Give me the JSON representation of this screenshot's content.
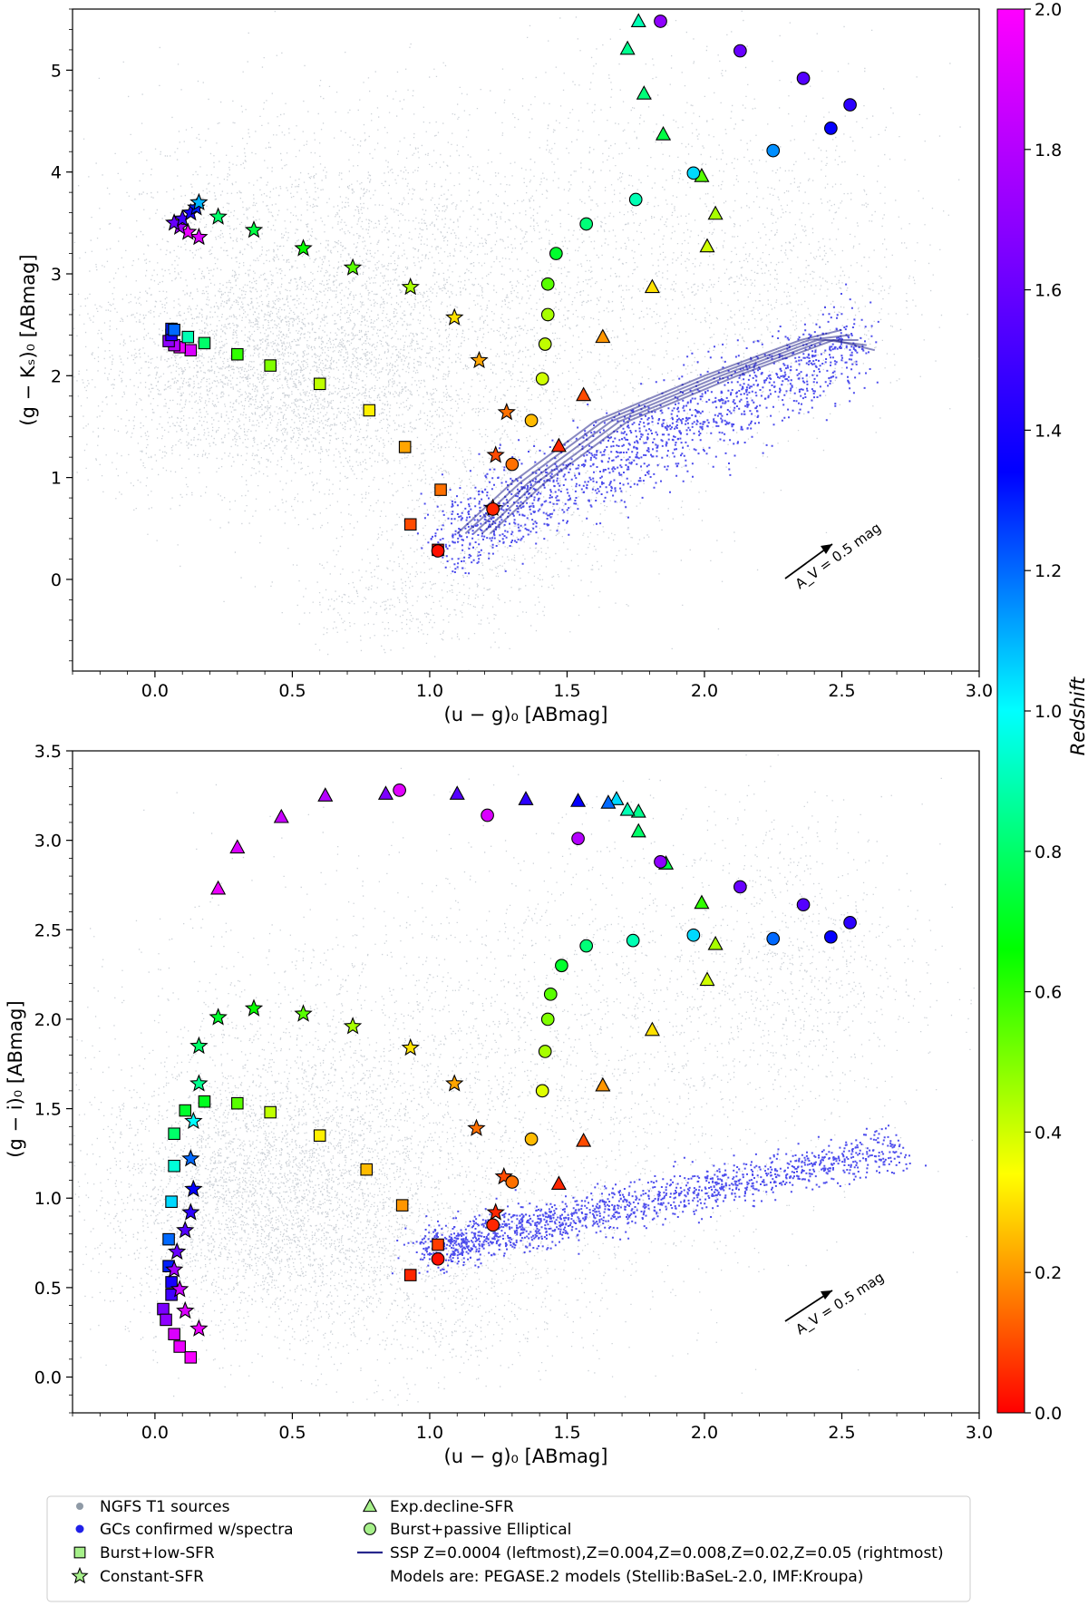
{
  "chart_data": [
    {
      "type": "scatter",
      "panel": "top",
      "xlabel": "(u − g)₀ [ABmag]",
      "ylabel": "(g − Kₛ)₀ [ABmag]",
      "xlim": [
        -0.3,
        3.0
      ],
      "ylim": [
        -0.9,
        5.6
      ],
      "xticks": [
        "0.0",
        "0.5",
        "1.0",
        "1.5",
        "2.0",
        "2.5",
        "3.0"
      ],
      "xtick_values": [
        0,
        0.5,
        1.0,
        1.5,
        2.0,
        2.5,
        3.0
      ],
      "yticks": [
        "0",
        "1",
        "2",
        "3",
        "4",
        "5"
      ],
      "ytick_values": [
        0,
        1,
        2,
        3,
        4,
        5
      ],
      "reddening_label": "A_V = 0.5 mag",
      "series": [
        {
          "name": "Burst+low-SFR",
          "marker": "square",
          "points": [
            [
              1.03,
              0.29
            ],
            [
              0.93,
              0.54
            ],
            [
              1.04,
              0.88
            ],
            [
              0.91,
              1.3
            ],
            [
              0.78,
              1.66
            ],
            [
              0.6,
              1.92
            ],
            [
              0.42,
              2.1
            ],
            [
              0.3,
              2.21
            ],
            [
              0.18,
              2.32
            ],
            [
              0.13,
              2.25
            ],
            [
              0.09,
              2.28
            ],
            [
              0.07,
              2.3
            ],
            [
              0.05,
              2.34
            ],
            [
              0.06,
              2.4
            ],
            [
              0.06,
              2.46
            ],
            [
              0.07,
              2.45
            ],
            [
              0.12,
              2.38
            ]
          ],
          "z": [
            0.02,
            0.1,
            0.15,
            0.22,
            0.32,
            0.42,
            0.5,
            0.6,
            0.8,
            1.9,
            1.95,
            1.8,
            1.7,
            1.4,
            1.3,
            1.2,
            0.9
          ]
        },
        {
          "name": "Constant-SFR",
          "marker": "star",
          "points": [
            [
              1.23,
              0.7
            ],
            [
              1.24,
              1.22
            ],
            [
              1.28,
              1.64
            ],
            [
              1.18,
              2.15
            ],
            [
              1.09,
              2.57
            ],
            [
              0.93,
              2.87
            ],
            [
              0.72,
              3.06
            ],
            [
              0.54,
              3.25
            ],
            [
              0.36,
              3.43
            ],
            [
              0.23,
              3.56
            ],
            [
              0.16,
              3.36
            ],
            [
              0.12,
              3.41
            ],
            [
              0.09,
              3.46
            ],
            [
              0.07,
              3.5
            ],
            [
              0.1,
              3.54
            ],
            [
              0.13,
              3.6
            ],
            [
              0.15,
              3.65
            ],
            [
              0.16,
              3.7
            ]
          ],
          "z": [
            0.05,
            0.1,
            0.15,
            0.22,
            0.3,
            0.45,
            0.55,
            0.65,
            0.75,
            0.8,
            1.9,
            1.95,
            1.75,
            1.6,
            1.5,
            1.4,
            1.3,
            1.1
          ]
        },
        {
          "name": "Exp.decline-SFR",
          "marker": "triangle",
          "points": [
            [
              1.47,
              1.31
            ],
            [
              1.56,
              1.81
            ],
            [
              1.63,
              2.38
            ],
            [
              1.81,
              2.87
            ],
            [
              2.01,
              3.27
            ],
            [
              2.04,
              3.59
            ],
            [
              1.99,
              3.96
            ],
            [
              1.85,
              4.37
            ],
            [
              1.78,
              4.77
            ],
            [
              1.72,
              5.21
            ],
            [
              1.76,
              5.48
            ]
          ],
          "z": [
            0.05,
            0.1,
            0.2,
            0.3,
            0.4,
            0.45,
            0.55,
            0.75,
            0.82,
            0.85,
            0.9
          ]
        },
        {
          "name": "Burst+passive Elliptical",
          "marker": "circle",
          "points": [
            [
              1.03,
              0.28
            ],
            [
              1.23,
              0.69
            ],
            [
              1.3,
              1.13
            ],
            [
              1.37,
              1.56
            ],
            [
              1.41,
              1.97
            ],
            [
              1.42,
              2.31
            ],
            [
              1.43,
              2.6
            ],
            [
              1.43,
              2.9
            ],
            [
              1.46,
              3.2
            ],
            [
              1.57,
              3.49
            ],
            [
              1.75,
              3.73
            ],
            [
              1.96,
              3.99
            ],
            [
              2.25,
              4.21
            ],
            [
              2.46,
              4.43
            ],
            [
              2.53,
              4.66
            ],
            [
              2.36,
              4.92
            ],
            [
              2.13,
              5.19
            ],
            [
              1.84,
              5.48
            ]
          ],
          "z": [
            0.02,
            0.05,
            0.15,
            0.25,
            0.4,
            0.42,
            0.45,
            0.55,
            0.72,
            0.82,
            0.9,
            1.05,
            1.15,
            1.35,
            1.45,
            1.55,
            1.6,
            1.7
          ]
        }
      ]
    },
    {
      "type": "scatter",
      "panel": "bottom",
      "xlabel": "(u − g)₀ [ABmag]",
      "ylabel": "(g − i)₀ [ABmag]",
      "xlim": [
        -0.3,
        3.0
      ],
      "ylim": [
        -0.2,
        3.5
      ],
      "xticks": [
        "0.0",
        "0.5",
        "1.0",
        "1.5",
        "2.0",
        "2.5",
        "3.0"
      ],
      "xtick_values": [
        0,
        0.5,
        1.0,
        1.5,
        2.0,
        2.5,
        3.0
      ],
      "yticks": [
        "0.0",
        "0.5",
        "1.0",
        "1.5",
        "2.0",
        "2.5",
        "3.0",
        "3.5"
      ],
      "ytick_values": [
        0,
        0.5,
        1.0,
        1.5,
        2.0,
        2.5,
        3.0,
        3.5
      ],
      "reddening_label": "A_V = 0.5 mag",
      "series": [
        {
          "name": "Burst+low-SFR",
          "marker": "square",
          "points": [
            [
              0.93,
              0.57
            ],
            [
              1.03,
              0.74
            ],
            [
              0.9,
              0.96
            ],
            [
              0.77,
              1.16
            ],
            [
              0.6,
              1.35
            ],
            [
              0.42,
              1.48
            ],
            [
              0.3,
              1.53
            ],
            [
              0.18,
              1.54
            ],
            [
              0.11,
              1.49
            ],
            [
              0.07,
              1.36
            ],
            [
              0.07,
              1.18
            ],
            [
              0.06,
              0.98
            ],
            [
              0.05,
              0.77
            ],
            [
              0.05,
              0.62
            ],
            [
              0.06,
              0.53
            ],
            [
              0.06,
              0.46
            ],
            [
              0.03,
              0.38
            ],
            [
              0.04,
              0.32
            ],
            [
              0.07,
              0.24
            ],
            [
              0.09,
              0.17
            ],
            [
              0.13,
              0.11
            ]
          ],
          "z": [
            0.05,
            0.08,
            0.2,
            0.25,
            0.32,
            0.42,
            0.55,
            0.7,
            0.72,
            0.8,
            0.95,
            1.05,
            1.2,
            1.3,
            1.4,
            1.5,
            1.65,
            1.7,
            1.9,
            1.95,
            1.98
          ]
        },
        {
          "name": "Constant-SFR",
          "marker": "star",
          "points": [
            [
              1.24,
              0.92
            ],
            [
              1.27,
              1.12
            ],
            [
              1.17,
              1.39
            ],
            [
              1.09,
              1.64
            ],
            [
              0.93,
              1.84
            ],
            [
              0.72,
              1.96
            ],
            [
              0.54,
              2.03
            ],
            [
              0.36,
              2.06
            ],
            [
              0.23,
              2.01
            ],
            [
              0.16,
              1.85
            ],
            [
              0.16,
              1.64
            ],
            [
              0.14,
              1.43
            ],
            [
              0.13,
              1.22
            ],
            [
              0.14,
              1.05
            ],
            [
              0.13,
              0.92
            ],
            [
              0.11,
              0.82
            ],
            [
              0.08,
              0.7
            ],
            [
              0.07,
              0.6
            ],
            [
              0.09,
              0.49
            ],
            [
              0.11,
              0.37
            ],
            [
              0.16,
              0.27
            ]
          ],
          "z": [
            0.05,
            0.1,
            0.15,
            0.22,
            0.3,
            0.45,
            0.55,
            0.65,
            0.72,
            0.8,
            0.85,
            1.0,
            1.2,
            1.35,
            1.45,
            1.55,
            1.6,
            1.75,
            1.85,
            1.9,
            1.95
          ]
        },
        {
          "name": "Exp.decline-SFR",
          "marker": "triangle",
          "points": [
            [
              1.47,
              1.08
            ],
            [
              1.56,
              1.32
            ],
            [
              1.63,
              1.63
            ],
            [
              1.81,
              1.94
            ],
            [
              2.01,
              2.22
            ],
            [
              2.04,
              2.42
            ],
            [
              1.99,
              2.65
            ],
            [
              1.86,
              2.87
            ],
            [
              1.76,
              3.05
            ],
            [
              1.76,
              3.16
            ],
            [
              1.72,
              3.17
            ],
            [
              1.68,
              3.23
            ],
            [
              1.65,
              3.21
            ],
            [
              1.54,
              3.22
            ],
            [
              1.35,
              3.23
            ],
            [
              1.1,
              3.26
            ],
            [
              0.84,
              3.26
            ],
            [
              0.62,
              3.25
            ],
            [
              0.46,
              3.13
            ],
            [
              0.3,
              2.96
            ],
            [
              0.23,
              2.73
            ]
          ],
          "z": [
            0.05,
            0.1,
            0.2,
            0.3,
            0.4,
            0.45,
            0.6,
            0.75,
            0.8,
            0.85,
            0.9,
            1.05,
            1.2,
            1.35,
            1.45,
            1.55,
            1.65,
            1.8,
            1.85,
            1.9,
            1.95
          ]
        },
        {
          "name": "Burst+passive Elliptical",
          "marker": "circle",
          "points": [
            [
              1.03,
              0.66
            ],
            [
              1.23,
              0.85
            ],
            [
              1.3,
              1.09
            ],
            [
              1.37,
              1.33
            ],
            [
              1.41,
              1.6
            ],
            [
              1.42,
              1.82
            ],
            [
              1.43,
              2.0
            ],
            [
              1.44,
              2.14
            ],
            [
              1.48,
              2.3
            ],
            [
              1.57,
              2.41
            ],
            [
              1.74,
              2.44
            ],
            [
              1.96,
              2.47
            ],
            [
              2.25,
              2.45
            ],
            [
              2.46,
              2.46
            ],
            [
              2.53,
              2.54
            ],
            [
              2.36,
              2.64
            ],
            [
              2.13,
              2.74
            ],
            [
              1.84,
              2.88
            ],
            [
              1.54,
              3.01
            ],
            [
              1.21,
              3.14
            ],
            [
              0.89,
              3.28
            ]
          ],
          "z": [
            0.02,
            0.05,
            0.15,
            0.25,
            0.38,
            0.45,
            0.5,
            0.55,
            0.72,
            0.82,
            0.9,
            1.05,
            1.2,
            1.35,
            1.45,
            1.55,
            1.6,
            1.7,
            1.8,
            1.9,
            1.92
          ]
        }
      ]
    }
  ],
  "colorbar": {
    "label": "Redshift",
    "range": [
      0.0,
      2.0
    ],
    "ticks": [
      "0.0",
      "0.2",
      "0.4",
      "0.6",
      "0.8",
      "1.0",
      "1.2",
      "1.4",
      "1.6",
      "1.8",
      "2.0"
    ],
    "tick_values": [
      0.0,
      0.2,
      0.4,
      0.6,
      0.8,
      1.0,
      1.2,
      1.4,
      1.6,
      1.8,
      2.0
    ]
  },
  "legend": {
    "items": [
      {
        "marker": "dot-gray",
        "label": "NGFS T1 sources"
      },
      {
        "marker": "dot-blue",
        "label": "GCs confirmed w/spectra"
      },
      {
        "marker": "square",
        "label": "Burst+low-SFR"
      },
      {
        "marker": "star",
        "label": "Constant-SFR"
      },
      {
        "marker": "triangle",
        "label": "Exp.decline-SFR"
      },
      {
        "marker": "circle",
        "label": "Burst+passive Elliptical"
      },
      {
        "marker": "line",
        "label": "SSP  Z=0.0004 (leftmost),Z=0.004,Z=0.008,Z=0.02,Z=0.05 (rightmost)"
      },
      {
        "marker": "none",
        "label": "Models are: PEGASE.2 models (Stellib:BaSeL-2.0, IMF:Kroupa)"
      }
    ]
  },
  "colors": {
    "field_sources": "#8f9aa6",
    "gc_points": "#2020e8",
    "ssp_line": "#26268c"
  }
}
